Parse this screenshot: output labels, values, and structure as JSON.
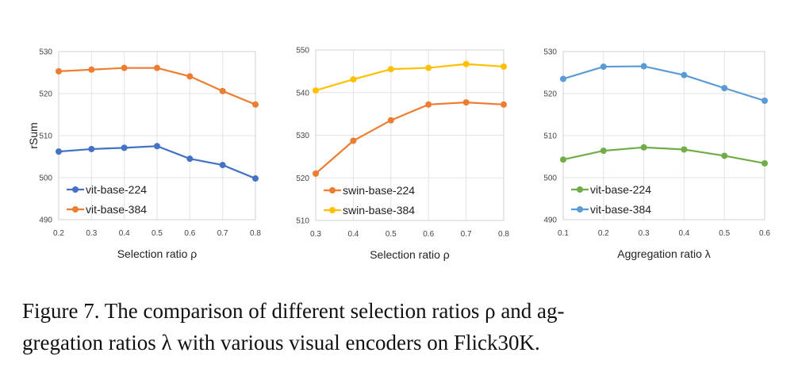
{
  "figure": {
    "caption_lines": [
      "Figure 7.  The comparison of different selection ratios ρ and ag-",
      "gregation ratios λ with various visual encoders on Flick30K."
    ]
  },
  "chart_data": [
    {
      "type": "line",
      "ylabel": "rSum",
      "xlabel": "Selection ratio ρ",
      "x": [
        0.2,
        0.3,
        0.4,
        0.5,
        0.6,
        0.7,
        0.8
      ],
      "x_ticks": [
        "0.2",
        "0.3",
        "0.4",
        "0.5",
        "0.6",
        "0.7",
        "0.8"
      ],
      "ylim": [
        490,
        530
      ],
      "y_ticks": [
        "490",
        "500",
        "510",
        "520",
        "530"
      ],
      "grid": true,
      "legend_position": "bottom-left",
      "series": [
        {
          "name": "vit-base-224",
          "color": "#4472C4",
          "values": [
            506.2,
            506.8,
            507.1,
            507.5,
            504.5,
            503.0,
            499.8
          ]
        },
        {
          "name": "vit-base-384",
          "color": "#ED7D31",
          "values": [
            525.3,
            525.7,
            526.1,
            526.1,
            524.1,
            520.6,
            517.4
          ]
        }
      ]
    },
    {
      "type": "line",
      "ylabel": "",
      "xlabel": "Selection ratio ρ",
      "x": [
        0.3,
        0.4,
        0.5,
        0.6,
        0.7,
        0.8
      ],
      "x_ticks": [
        "0.3",
        "0.4",
        "0.5",
        "0.6",
        "0.7",
        "0.8"
      ],
      "ylim": [
        510,
        550
      ],
      "y_ticks": [
        "510",
        "520",
        "530",
        "540",
        "550"
      ],
      "grid": true,
      "legend_position": "bottom-left",
      "series": [
        {
          "name": "swin-base-224",
          "color": "#ED7D31",
          "values": [
            521.0,
            528.7,
            533.5,
            537.2,
            537.7,
            537.2
          ]
        },
        {
          "name": "swin-base-384",
          "color": "#FFC000",
          "values": [
            540.5,
            543.1,
            545.5,
            545.8,
            546.7,
            546.1
          ]
        }
      ]
    },
    {
      "type": "line",
      "ylabel": "",
      "xlabel": "Aggregation ratio λ",
      "x": [
        0.1,
        0.2,
        0.3,
        0.4,
        0.5,
        0.6
      ],
      "x_ticks": [
        "0.1",
        "0.2",
        "0.3",
        "0.4",
        "0.5",
        "0.6"
      ],
      "ylim": [
        490,
        530
      ],
      "y_ticks": [
        "490",
        "500",
        "510",
        "520",
        "530"
      ],
      "grid": true,
      "legend_position": "bottom-left",
      "series": [
        {
          "name": "vit-base-224",
          "color": "#70AD47",
          "values": [
            504.3,
            506.4,
            507.2,
            506.7,
            505.2,
            503.4
          ]
        },
        {
          "name": "vit-base-384",
          "color": "#5B9BD5",
          "values": [
            523.5,
            526.4,
            526.5,
            524.4,
            521.3,
            518.3
          ]
        }
      ]
    }
  ]
}
